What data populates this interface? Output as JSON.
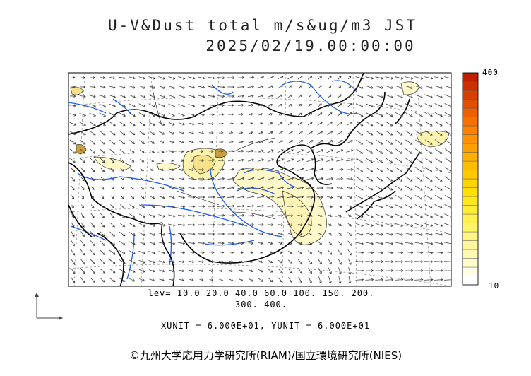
{
  "title_line1": "U-V&Dust total m/s&ug/m3 JST",
  "title_line2": "2025/02/19.00:00:00",
  "colorbar": {
    "max_label": "400",
    "min_label": "10",
    "colors": [
      "#ffffff",
      "#fffde6",
      "#fffbcc",
      "#fff9b3",
      "#fff799",
      "#fff580",
      "#fff366",
      "#fff04d",
      "#ffed33",
      "#ffe81a",
      "#ffe000",
      "#ffd400",
      "#ffc800",
      "#ffbc00",
      "#ffb000",
      "#ffa000",
      "#ff9000",
      "#ff8000",
      "#f57000",
      "#eb6000",
      "#e05000",
      "#d64000",
      "#cc3000",
      "#c02000"
    ]
  },
  "levels_line1": "lev= 10.0 20.0 40.0 60.0 100. 150. 200.",
  "levels_line2": "300. 400.",
  "unit_text": "XUNIT = 6.000E+01, YUNIT = 6.000E+01",
  "copyright": "©九州大学応用力学研究所(RIAM)/国立環境研究所(NIES)",
  "colors": {
    "river": "#1a5cff",
    "border": "#000000",
    "dust_low": "#fff8c8",
    "dust_high": "#e8c85a"
  }
}
